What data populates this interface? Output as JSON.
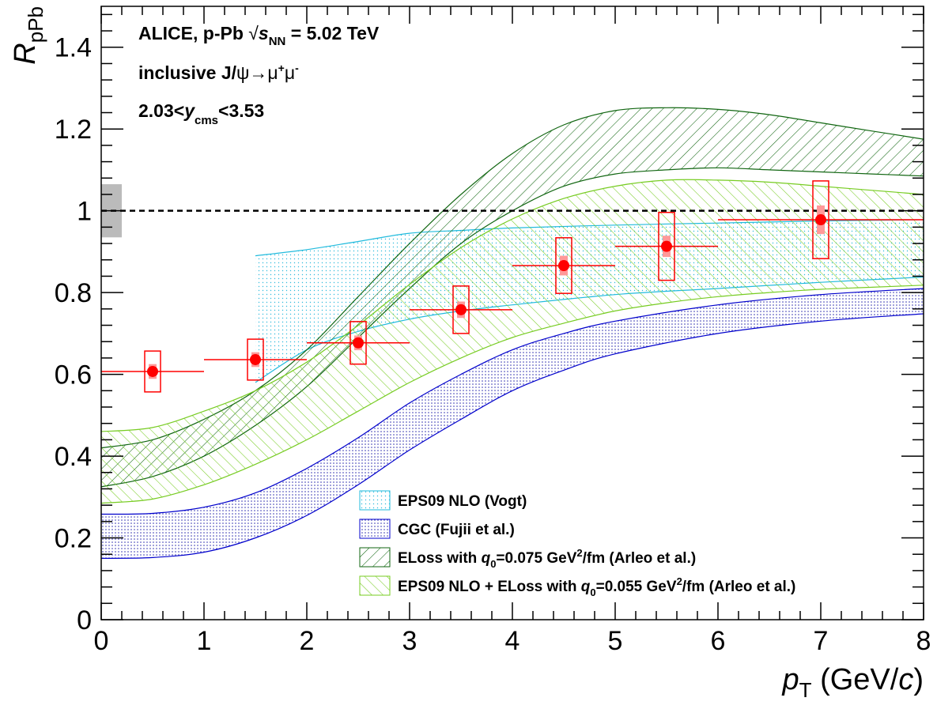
{
  "chart_data": {
    "type": "scatter",
    "xlim": [
      0,
      8
    ],
    "ylim": [
      0,
      1.5
    ],
    "x_ticks": [
      "0",
      "1",
      "2",
      "3",
      "4",
      "5",
      "6",
      "7",
      "8"
    ],
    "y_ticks": [
      "0",
      "0.2",
      "0.4",
      "0.6",
      "0.8",
      "1",
      "1.2",
      "1.4"
    ],
    "xlabel": {
      "main": "p",
      "sub": "T",
      "units": " (GeV/",
      "units_var": "c",
      "units_end": ")"
    },
    "ylabel": {
      "main": "R",
      "sub": "pPb"
    },
    "annotations": {
      "line1_a": "ALICE, p-Pb  ",
      "line1_sqrt": "√",
      "line1_s": "s",
      "line1_sub": "NN",
      "line1_b": " = 5.02 TeV",
      "line2_a": "inclusive J/",
      "line2_psi": "ψ→μ",
      "line2_sup1": "+",
      "line2_mu": "μ",
      "line2_sup2": "-",
      "line3_a": "2.03<",
      "line3_y": "y",
      "line3_sub": "cms",
      "line3_b": "<3.53"
    },
    "reference_line": 1.0,
    "global_uncertainty": [
      0.935,
      1.065
    ],
    "data": {
      "color": "#ff0000",
      "points": [
        {
          "x": 0.5,
          "y": 0.607,
          "xerr": 0.5,
          "stat": 0.018,
          "syst": 0.05
        },
        {
          "x": 1.5,
          "y": 0.636,
          "xerr": 0.5,
          "stat": 0.018,
          "syst": 0.05
        },
        {
          "x": 2.5,
          "y": 0.677,
          "xerr": 0.5,
          "stat": 0.018,
          "syst": 0.052
        },
        {
          "x": 3.5,
          "y": 0.758,
          "xerr": 0.5,
          "stat": 0.02,
          "syst": 0.058
        },
        {
          "x": 4.5,
          "y": 0.866,
          "xerr": 0.5,
          "stat": 0.024,
          "syst": 0.068
        },
        {
          "x": 5.5,
          "y": 0.913,
          "xerr": 0.5,
          "stat": 0.026,
          "syst": 0.083
        },
        {
          "x": 7.0,
          "y": 0.978,
          "xerr": 1.0,
          "stat": 0.035,
          "syst": 0.095
        }
      ]
    },
    "series": [
      {
        "name": "EPS09 NLO (Vogt)",
        "color": "#22bbdd",
        "fill": "dots",
        "x": [
          1.5,
          2,
          2.5,
          3,
          3.5,
          4,
          5,
          6,
          7,
          8
        ],
        "upper": [
          0.89,
          0.905,
          0.925,
          0.945,
          0.952,
          0.958,
          0.965,
          0.97,
          0.975,
          0.978
        ],
        "lower": [
          0.58,
          0.66,
          0.705,
          0.735,
          0.755,
          0.77,
          0.795,
          0.81,
          0.825,
          0.838
        ]
      },
      {
        "name": "CGC (Fujii et al.)",
        "color": "#0000cc",
        "fill": "dense-dots",
        "x": [
          0,
          0.5,
          1,
          1.5,
          2,
          2.5,
          3,
          3.5,
          4,
          4.5,
          5,
          6,
          7,
          8
        ],
        "upper": [
          0.258,
          0.26,
          0.275,
          0.31,
          0.37,
          0.445,
          0.53,
          0.6,
          0.66,
          0.7,
          0.73,
          0.77,
          0.795,
          0.81
        ],
        "lower": [
          0.15,
          0.152,
          0.165,
          0.2,
          0.255,
          0.33,
          0.415,
          0.49,
          0.56,
          0.61,
          0.65,
          0.7,
          0.73,
          0.748
        ]
      },
      {
        "name_a": "ELoss with  ",
        "name_q": "q",
        "name_sub": "0",
        "name_b": "=0.075 GeV",
        "name_sup": "2",
        "name_c": "/fm (Arleo et al.)",
        "color": "#116611",
        "fill": "hatch-back",
        "x": [
          0,
          0.5,
          1,
          1.5,
          2,
          2.5,
          3,
          3.5,
          4,
          4.5,
          5,
          5.5,
          6,
          6.5,
          7,
          7.5,
          8
        ],
        "upper": [
          0.42,
          0.44,
          0.49,
          0.56,
          0.66,
          0.79,
          0.92,
          1.04,
          1.14,
          1.21,
          1.245,
          1.252,
          1.248,
          1.235,
          1.215,
          1.195,
          1.175
        ],
        "lower": [
          0.325,
          0.35,
          0.4,
          0.475,
          0.57,
          0.69,
          0.81,
          0.92,
          1.0,
          1.06,
          1.09,
          1.1,
          1.105,
          1.1,
          1.095,
          1.09,
          1.085
        ]
      },
      {
        "name_a": "EPS09 NLO + ELoss with  ",
        "name_q": "q",
        "name_sub": "0",
        "name_b": "=0.055 GeV",
        "name_sup": "2",
        "name_c": "/fm (Arleo et al.)",
        "color": "#77cc22",
        "fill": "hatch-fwd",
        "x": [
          0,
          0.5,
          1,
          1.5,
          2,
          2.5,
          3,
          3.5,
          4,
          4.5,
          5,
          5.5,
          6,
          6.5,
          7,
          7.5,
          8
        ],
        "upper": [
          0.46,
          0.47,
          0.51,
          0.56,
          0.63,
          0.72,
          0.82,
          0.91,
          0.98,
          1.03,
          1.06,
          1.075,
          1.075,
          1.07,
          1.06,
          1.05,
          1.04
        ],
        "lower": [
          0.285,
          0.295,
          0.33,
          0.38,
          0.44,
          0.51,
          0.58,
          0.64,
          0.69,
          0.725,
          0.755,
          0.775,
          0.79,
          0.8,
          0.808,
          0.813,
          0.818
        ]
      }
    ],
    "legend": {
      "placement": "bottom-right",
      "entry1": "EPS09 NLO (Vogt)",
      "entry2": "CGC (Fujii et al.)"
    }
  }
}
